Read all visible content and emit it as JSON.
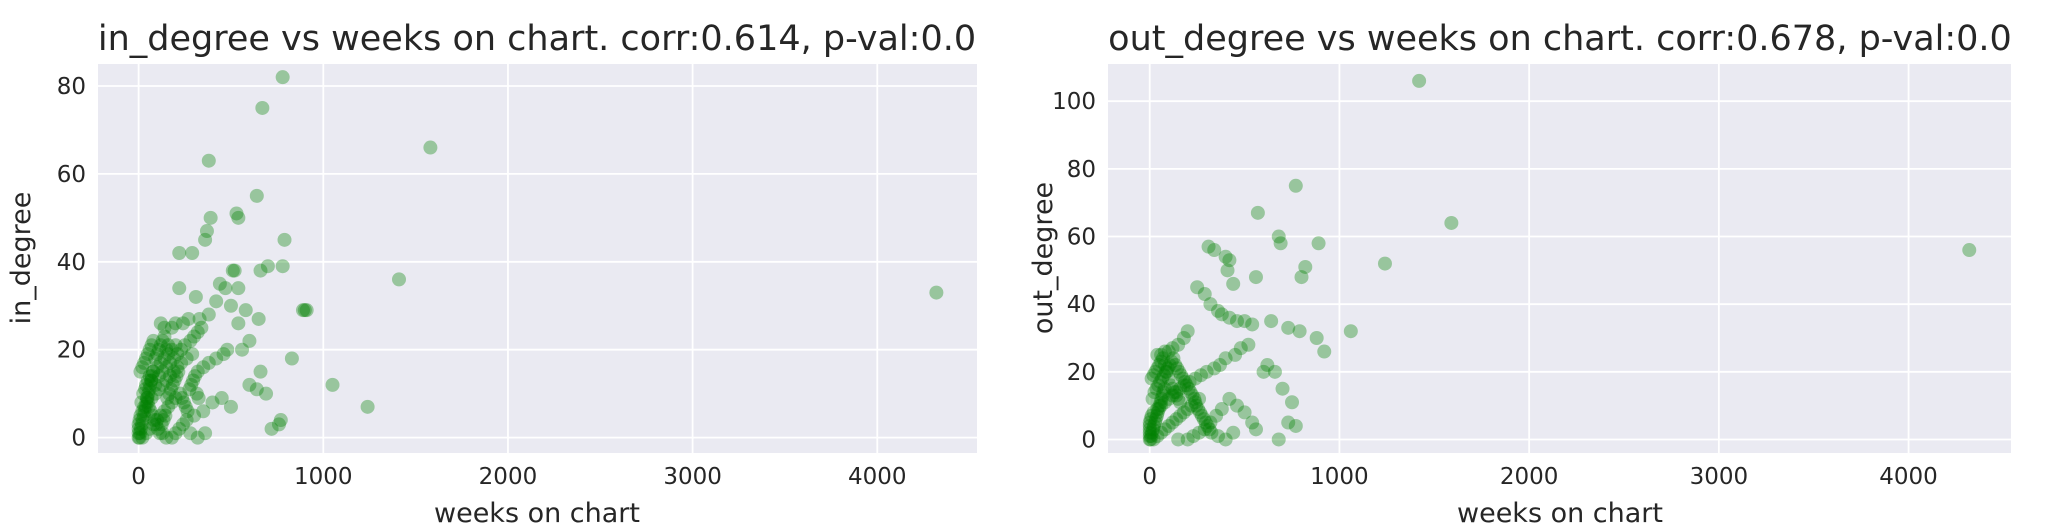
{
  "chart_data": [
    {
      "type": "scatter",
      "title": "in_degree vs weeks on chart. corr:0.614, p-val:0.0",
      "xlabel": "weeks on chart",
      "ylabel": "in_degree",
      "xlim": [
        -220,
        4540
      ],
      "ylim": [
        -3.5,
        85
      ],
      "xticks": [
        0,
        1000,
        2000,
        3000,
        4000
      ],
      "xtick_labels": [
        "0",
        "1000",
        "2000",
        "3000",
        "4000"
      ],
      "yticks": [
        0,
        20,
        40,
        60,
        80
      ],
      "ytick_labels": [
        "0",
        "20",
        "40",
        "60",
        "80"
      ],
      "grid": true,
      "marker_color": "#008000",
      "marker_alpha": 0.35,
      "points": [
        [
          780,
          82
        ],
        [
          670,
          75
        ],
        [
          1580,
          66
        ],
        [
          380,
          63
        ],
        [
          640,
          55
        ],
        [
          390,
          50
        ],
        [
          530,
          51
        ],
        [
          540,
          50
        ],
        [
          370,
          47
        ],
        [
          360,
          45
        ],
        [
          790,
          45
        ],
        [
          220,
          42
        ],
        [
          290,
          42
        ],
        [
          780,
          39
        ],
        [
          700,
          39
        ],
        [
          510,
          38
        ],
        [
          520,
          38
        ],
        [
          660,
          38
        ],
        [
          440,
          35
        ],
        [
          1410,
          36
        ],
        [
          470,
          34
        ],
        [
          540,
          34
        ],
        [
          220,
          34
        ],
        [
          890,
          29
        ],
        [
          900,
          29
        ],
        [
          910,
          29
        ],
        [
          4320,
          33
        ],
        [
          310,
          32
        ],
        [
          420,
          31
        ],
        [
          500,
          30
        ],
        [
          580,
          29
        ],
        [
          380,
          28
        ],
        [
          650,
          27
        ],
        [
          540,
          26
        ],
        [
          330,
          27
        ],
        [
          270,
          27
        ],
        [
          240,
          26
        ],
        [
          200,
          26
        ],
        [
          180,
          25
        ],
        [
          140,
          25
        ],
        [
          120,
          26
        ],
        [
          600,
          22
        ],
        [
          560,
          20
        ],
        [
          830,
          18
        ],
        [
          480,
          20
        ],
        [
          460,
          19
        ],
        [
          420,
          18
        ],
        [
          380,
          17
        ],
        [
          350,
          16
        ],
        [
          320,
          15
        ],
        [
          290,
          19
        ],
        [
          260,
          18
        ],
        [
          230,
          17
        ],
        [
          210,
          16
        ],
        [
          190,
          15
        ],
        [
          170,
          14
        ],
        [
          150,
          13
        ],
        [
          130,
          12
        ],
        [
          110,
          11
        ],
        [
          90,
          10
        ],
        [
          70,
          9
        ],
        [
          50,
          8
        ],
        [
          30,
          7
        ],
        [
          20,
          6
        ],
        [
          10,
          5
        ],
        [
          5,
          4
        ],
        [
          0,
          3
        ],
        [
          0,
          2
        ],
        [
          0,
          1
        ],
        [
          0,
          0
        ],
        [
          20,
          0
        ],
        [
          40,
          1
        ],
        [
          60,
          2
        ],
        [
          80,
          3
        ],
        [
          100,
          4
        ],
        [
          120,
          5
        ],
        [
          140,
          6
        ],
        [
          160,
          7
        ],
        [
          180,
          8
        ],
        [
          200,
          9
        ],
        [
          60,
          14
        ],
        [
          80,
          15
        ],
        [
          100,
          16
        ],
        [
          120,
          17
        ],
        [
          140,
          18
        ],
        [
          160,
          19
        ],
        [
          180,
          20
        ],
        [
          200,
          21
        ],
        [
          40,
          12
        ],
        [
          50,
          13
        ],
        [
          70,
          13
        ],
        [
          90,
          12
        ],
        [
          110,
          14
        ],
        [
          130,
          15
        ],
        [
          150,
          16
        ],
        [
          170,
          17
        ],
        [
          190,
          18
        ],
        [
          210,
          19
        ],
        [
          230,
          20
        ],
        [
          250,
          21
        ],
        [
          280,
          22
        ],
        [
          300,
          23
        ],
        [
          320,
          24
        ],
        [
          340,
          25
        ],
        [
          660,
          15
        ],
        [
          600,
          12
        ],
        [
          640,
          11
        ],
        [
          690,
          10
        ],
        [
          720,
          2
        ],
        [
          760,
          3
        ],
        [
          770,
          4
        ],
        [
          1050,
          12
        ],
        [
          1240,
          7
        ],
        [
          500,
          7
        ],
        [
          450,
          9
        ],
        [
          400,
          8
        ],
        [
          350,
          6
        ],
        [
          300,
          5
        ],
        [
          260,
          4
        ],
        [
          240,
          3
        ],
        [
          220,
          2
        ],
        [
          200,
          1
        ],
        [
          180,
          0
        ],
        [
          320,
          0
        ],
        [
          360,
          1
        ],
        [
          280,
          1
        ],
        [
          150,
          0
        ],
        [
          130,
          1
        ],
        [
          15,
          8
        ],
        [
          25,
          10
        ],
        [
          35,
          11
        ],
        [
          45,
          9
        ],
        [
          55,
          7
        ],
        [
          65,
          6
        ],
        [
          75,
          5
        ],
        [
          85,
          4
        ],
        [
          95,
          3
        ],
        [
          105,
          2
        ],
        [
          115,
          1
        ],
        [
          125,
          3
        ],
        [
          135,
          4
        ],
        [
          145,
          5
        ],
        [
          155,
          9
        ],
        [
          165,
          10
        ],
        [
          175,
          11
        ],
        [
          185,
          12
        ],
        [
          195,
          13
        ],
        [
          205,
          14
        ],
        [
          215,
          15
        ],
        [
          225,
          10
        ],
        [
          235,
          9
        ],
        [
          245,
          8
        ],
        [
          255,
          7
        ],
        [
          265,
          6
        ],
        [
          275,
          11
        ],
        [
          285,
          12
        ],
        [
          295,
          13
        ],
        [
          305,
          14
        ],
        [
          315,
          10
        ],
        [
          325,
          9
        ],
        [
          10,
          15
        ],
        [
          20,
          16
        ],
        [
          30,
          17
        ],
        [
          40,
          18
        ],
        [
          50,
          19
        ],
        [
          60,
          20
        ],
        [
          70,
          21
        ],
        [
          80,
          22
        ],
        [
          90,
          18
        ],
        [
          100,
          19
        ],
        [
          110,
          20
        ],
        [
          120,
          21
        ],
        [
          130,
          22
        ],
        [
          140,
          23
        ],
        [
          150,
          20
        ],
        [
          160,
          21
        ],
        [
          5,
          0
        ],
        [
          8,
          1
        ],
        [
          12,
          2
        ],
        [
          18,
          3
        ],
        [
          22,
          4
        ],
        [
          28,
          5
        ],
        [
          32,
          6
        ],
        [
          38,
          7
        ],
        [
          42,
          8
        ],
        [
          48,
          9
        ],
        [
          52,
          10
        ],
        [
          58,
          11
        ],
        [
          62,
          12
        ],
        [
          68,
          13
        ],
        [
          72,
          14
        ],
        [
          78,
          15
        ]
      ]
    },
    {
      "type": "scatter",
      "title": "out_degree vs weeks on chart. corr:0.678, p-val:0.0",
      "xlabel": "weeks on chart",
      "ylabel": "out_degree",
      "xlim": [
        -220,
        4540
      ],
      "ylim": [
        -4,
        111
      ],
      "xticks": [
        0,
        1000,
        2000,
        3000,
        4000
      ],
      "xtick_labels": [
        "0",
        "1000",
        "2000",
        "3000",
        "4000"
      ],
      "yticks": [
        0,
        20,
        40,
        60,
        80,
        100
      ],
      "ytick_labels": [
        "0",
        "20",
        "40",
        "60",
        "80",
        "100"
      ],
      "grid": true,
      "marker_color": "#008000",
      "marker_alpha": 0.35,
      "points": [
        [
          1420,
          106
        ],
        [
          770,
          75
        ],
        [
          570,
          67
        ],
        [
          1590,
          64
        ],
        [
          680,
          60
        ],
        [
          690,
          58
        ],
        [
          890,
          58
        ],
        [
          310,
          57
        ],
        [
          340,
          56
        ],
        [
          400,
          54
        ],
        [
          420,
          53
        ],
        [
          1240,
          52
        ],
        [
          820,
          51
        ],
        [
          800,
          48
        ],
        [
          410,
          50
        ],
        [
          560,
          48
        ],
        [
          440,
          46
        ],
        [
          250,
          45
        ],
        [
          290,
          43
        ],
        [
          320,
          40
        ],
        [
          360,
          38
        ],
        [
          380,
          37
        ],
        [
          420,
          36
        ],
        [
          460,
          35
        ],
        [
          500,
          35
        ],
        [
          640,
          35
        ],
        [
          540,
          34
        ],
        [
          1060,
          32
        ],
        [
          730,
          33
        ],
        [
          790,
          32
        ],
        [
          880,
          30
        ],
        [
          920,
          26
        ],
        [
          200,
          32
        ],
        [
          180,
          30
        ],
        [
          150,
          28
        ],
        [
          120,
          27
        ],
        [
          100,
          26
        ],
        [
          80,
          26
        ],
        [
          60,
          25
        ],
        [
          40,
          25
        ],
        [
          520,
          28
        ],
        [
          480,
          27
        ],
        [
          450,
          25
        ],
        [
          400,
          24
        ],
        [
          370,
          22
        ],
        [
          340,
          21
        ],
        [
          300,
          20
        ],
        [
          270,
          19
        ],
        [
          240,
          18
        ],
        [
          210,
          17
        ],
        [
          180,
          16
        ],
        [
          160,
          15
        ],
        [
          140,
          14
        ],
        [
          120,
          13
        ],
        [
          100,
          12
        ],
        [
          80,
          11
        ],
        [
          60,
          10
        ],
        [
          40,
          9
        ],
        [
          20,
          8
        ],
        [
          10,
          7
        ],
        [
          5,
          6
        ],
        [
          0,
          5
        ],
        [
          0,
          4
        ],
        [
          0,
          3
        ],
        [
          0,
          2
        ],
        [
          0,
          1
        ],
        [
          0,
          0
        ],
        [
          20,
          0
        ],
        [
          40,
          1
        ],
        [
          60,
          2
        ],
        [
          80,
          3
        ],
        [
          100,
          4
        ],
        [
          120,
          5
        ],
        [
          140,
          6
        ],
        [
          160,
          7
        ],
        [
          180,
          8
        ],
        [
          200,
          9
        ],
        [
          220,
          10
        ],
        [
          240,
          11
        ],
        [
          260,
          12
        ],
        [
          620,
          22
        ],
        [
          600,
          20
        ],
        [
          660,
          20
        ],
        [
          700,
          15
        ],
        [
          750,
          11
        ],
        [
          730,
          5
        ],
        [
          770,
          4
        ],
        [
          680,
          0
        ],
        [
          540,
          5
        ],
        [
          560,
          3
        ],
        [
          500,
          8
        ],
        [
          460,
          10
        ],
        [
          420,
          12
        ],
        [
          380,
          9
        ],
        [
          350,
          7
        ],
        [
          320,
          5
        ],
        [
          290,
          3
        ],
        [
          260,
          2
        ],
        [
          230,
          1
        ],
        [
          200,
          0
        ],
        [
          400,
          0
        ],
        [
          440,
          2
        ],
        [
          360,
          1
        ],
        [
          150,
          0
        ],
        [
          15,
          12
        ],
        [
          25,
          14
        ],
        [
          35,
          15
        ],
        [
          45,
          16
        ],
        [
          55,
          17
        ],
        [
          65,
          18
        ],
        [
          75,
          19
        ],
        [
          85,
          20
        ],
        [
          95,
          21
        ],
        [
          105,
          22
        ],
        [
          115,
          23
        ],
        [
          125,
          24
        ],
        [
          135,
          22
        ],
        [
          145,
          21
        ],
        [
          155,
          20
        ],
        [
          165,
          19
        ],
        [
          175,
          18
        ],
        [
          185,
          17
        ],
        [
          195,
          16
        ],
        [
          205,
          15
        ],
        [
          215,
          14
        ],
        [
          225,
          13
        ],
        [
          235,
          12
        ],
        [
          245,
          10
        ],
        [
          255,
          9
        ],
        [
          265,
          8
        ],
        [
          275,
          7
        ],
        [
          285,
          6
        ],
        [
          295,
          5
        ],
        [
          305,
          4
        ],
        [
          315,
          3
        ],
        [
          325,
          2
        ],
        [
          10,
          18
        ],
        [
          20,
          19
        ],
        [
          30,
          20
        ],
        [
          40,
          21
        ],
        [
          50,
          22
        ],
        [
          60,
          23
        ],
        [
          70,
          24
        ],
        [
          80,
          22
        ],
        [
          90,
          20
        ],
        [
          100,
          18
        ],
        [
          110,
          16
        ],
        [
          120,
          15
        ],
        [
          130,
          14
        ],
        [
          140,
          13
        ],
        [
          150,
          12
        ],
        [
          160,
          11
        ],
        [
          5,
          0
        ],
        [
          8,
          1
        ],
        [
          12,
          2
        ],
        [
          18,
          3
        ],
        [
          22,
          4
        ],
        [
          28,
          5
        ],
        [
          32,
          6
        ],
        [
          38,
          7
        ],
        [
          42,
          8
        ],
        [
          48,
          9
        ],
        [
          52,
          10
        ],
        [
          58,
          11
        ],
        [
          62,
          12
        ],
        [
          68,
          13
        ],
        [
          72,
          14
        ],
        [
          78,
          15
        ],
        [
          4320,
          56
        ]
      ]
    }
  ]
}
